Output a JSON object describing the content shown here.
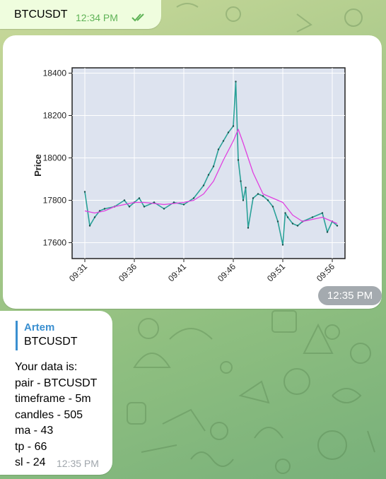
{
  "messages": {
    "msg1": {
      "text": "BTCUSDT",
      "time": "12:34 PM",
      "status_icon": "double-check-icon"
    },
    "msg2": {
      "time": "12:35 PM"
    },
    "msg3": {
      "reply_author": "Artem",
      "reply_text": "BTCUSDT",
      "lines": [
        "Your data is:",
        "pair - BTCUSDT",
        "timeframe - 5m",
        "candles - 505",
        "ma - 43",
        "tp - 66",
        "sl - 24"
      ],
      "time": "12:35 PM"
    }
  },
  "chart_data": {
    "type": "line",
    "title": "",
    "xlabel": "",
    "ylabel": "Price",
    "x_ticks": [
      "09:31",
      "09:36",
      "09:41",
      "09:46",
      "09:51",
      "09:56"
    ],
    "y_ticks": [
      17600,
      17800,
      18000,
      18200,
      18400
    ],
    "ylim": [
      17525,
      18425
    ],
    "grid": true,
    "series": [
      {
        "color": "#2aa198",
        "x": [
          "09:31",
          "09:31:30",
          "09:32",
          "09:32:30",
          "09:33",
          "09:34",
          "09:35",
          "09:35:30",
          "09:36",
          "09:36:30",
          "09:37",
          "09:38",
          "09:39",
          "09:40",
          "09:41",
          "09:42",
          "09:43",
          "09:43:30",
          "09:44",
          "09:44:30",
          "09:45",
          "09:45:30",
          "09:46",
          "09:46:15",
          "09:46:30",
          "09:46:45",
          "09:47",
          "09:47:15",
          "09:47:30",
          "09:48",
          "09:48:30",
          "09:49",
          "09:49:30",
          "09:50",
          "09:50:30",
          "09:51",
          "09:51:15",
          "09:51:30",
          "09:52",
          "09:52:30",
          "09:53",
          "09:54",
          "09:55",
          "09:55:30",
          "09:56",
          "09:56:30"
        ],
        "values": [
          17840,
          17680,
          17720,
          17750,
          17760,
          17770,
          17800,
          17770,
          17790,
          17810,
          17770,
          17790,
          17760,
          17790,
          17780,
          17810,
          17870,
          17920,
          17960,
          18040,
          18080,
          18120,
          18150,
          18360,
          17990,
          17890,
          17800,
          17860,
          17670,
          17810,
          17830,
          17820,
          17800,
          17770,
          17700,
          17590,
          17740,
          17720,
          17690,
          17680,
          17700,
          17720,
          17740,
          17650,
          17700,
          17680
        ]
      },
      {
        "color": "#e040e0",
        "x": [
          "09:31",
          "09:32",
          "09:33",
          "09:34",
          "09:35",
          "09:36",
          "09:37",
          "09:38",
          "09:39",
          "09:40",
          "09:41",
          "09:42",
          "09:43",
          "09:44",
          "09:45",
          "09:46",
          "09:46:30",
          "09:47",
          "09:48",
          "09:49",
          "09:50",
          "09:51",
          "09:52",
          "09:53",
          "09:54",
          "09:55",
          "09:56",
          "09:56:30"
        ],
        "values": [
          17750,
          17740,
          17750,
          17770,
          17780,
          17790,
          17790,
          17785,
          17780,
          17785,
          17790,
          17800,
          17830,
          17890,
          17990,
          18080,
          18135,
          18070,
          17930,
          17830,
          17810,
          17790,
          17730,
          17700,
          17710,
          17720,
          17700,
          17690
        ]
      }
    ]
  }
}
